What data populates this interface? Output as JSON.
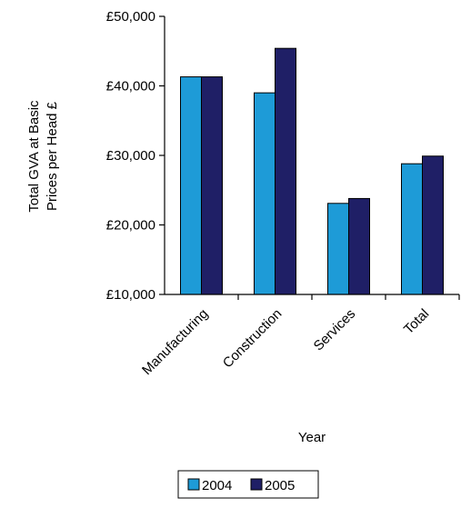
{
  "chart_data": {
    "type": "bar",
    "categories": [
      "Manufacturing",
      "Construction",
      "Services",
      "Total"
    ],
    "series": [
      {
        "name": "2004",
        "values": [
          41300,
          39000,
          23100,
          28800
        ],
        "color": "#1e9bd7"
      },
      {
        "name": "2005",
        "values": [
          41300,
          45400,
          23800,
          29900
        ],
        "color": "#1f1f66"
      }
    ],
    "ylim": [
      10000,
      50000
    ],
    "yticks": [
      10000,
      20000,
      30000,
      40000,
      50000
    ],
    "ytick_labels": [
      "£10,000",
      "£20,000",
      "£30,000",
      "£40,000",
      "£50,000"
    ],
    "ylabel_line1": "Total GVA at Basic",
    "ylabel_line2": "Prices per Head £",
    "xlabel": "Year",
    "legend_placement": "bottom-center",
    "grid": false
  }
}
